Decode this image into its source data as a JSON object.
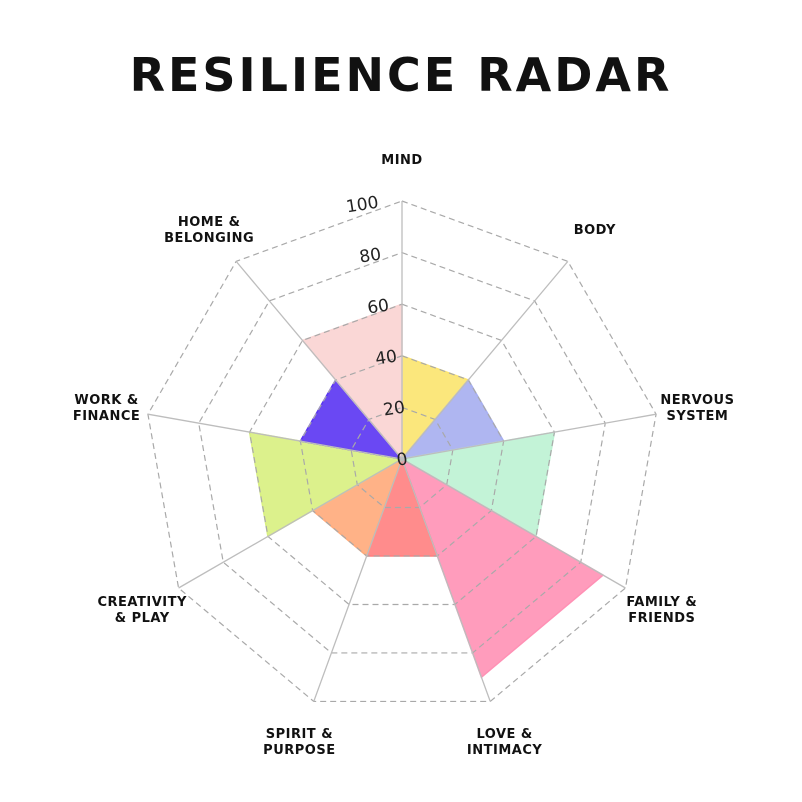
{
  "chart_data": {
    "type": "radar",
    "title": "RESILIENCE RADAR",
    "rlim": [
      0,
      100
    ],
    "ticks": [
      "0",
      "20",
      "40",
      "60",
      "80",
      "100"
    ],
    "tick_values": [
      0,
      20,
      40,
      60,
      80,
      100
    ],
    "grid": true,
    "categories": [
      {
        "label": [
          "MIND"
        ],
        "value": 40,
        "color": "#FBE46E"
      },
      {
        "label": [
          "BODY"
        ],
        "value": 40,
        "color": "#A6AEEF"
      },
      {
        "label": [
          "NERVOUS",
          "SYSTEM"
        ],
        "value": 60,
        "color": "#BCF2D3"
      },
      {
        "label": [
          "FAMILY &",
          "FRIENDS"
        ],
        "value": 90,
        "color": "#FF91B5"
      },
      {
        "label": [
          "LOVE &",
          "INTIMACY"
        ],
        "value": 40,
        "color": "#FF7F7F"
      },
      {
        "label": [
          "SPIRIT &",
          "PURPOSE"
        ],
        "value": 40,
        "color": "#FFAA7A"
      },
      {
        "label": [
          "CREATIVITY",
          "& PLAY"
        ],
        "value": 60,
        "color": "#D8F07F"
      },
      {
        "label": [
          "WORK &",
          "FINANCE"
        ],
        "value": 40,
        "color": "#5A34F2"
      },
      {
        "label": [
          "HOME &",
          "BELONGING"
        ],
        "value": 60,
        "color": "#F9D3D2"
      }
    ]
  }
}
